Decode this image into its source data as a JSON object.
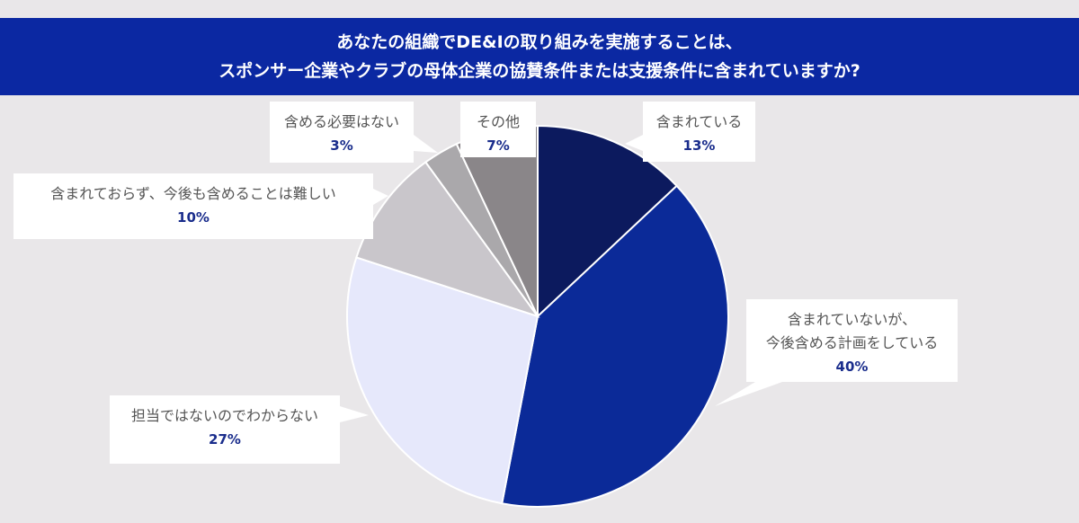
{
  "chart_data": {
    "type": "pie",
    "title": "あなたの組織でDE&Iの取り組みを実施することは、\nスポンサー企業やクラブの母体企業の協賛条件または支援条件に含まれていますか?",
    "categories": [
      "含まれている",
      "含まれていないが、\n今後含める計画をしている",
      "担当ではないのでわからない",
      "含まれておらず、今後も含めることは難しい",
      "含める必要はない",
      "その他"
    ],
    "values": [
      13,
      40,
      27,
      10,
      3,
      7
    ],
    "value_labels": [
      "13%",
      "40%",
      "27%",
      "10%",
      "3%",
      "7%"
    ],
    "colors": [
      "#0c1a5e",
      "#0b2a98",
      "#e6e8fb",
      "#c9c6cb",
      "#aaa8ab",
      "#8a8689"
    ]
  }
}
